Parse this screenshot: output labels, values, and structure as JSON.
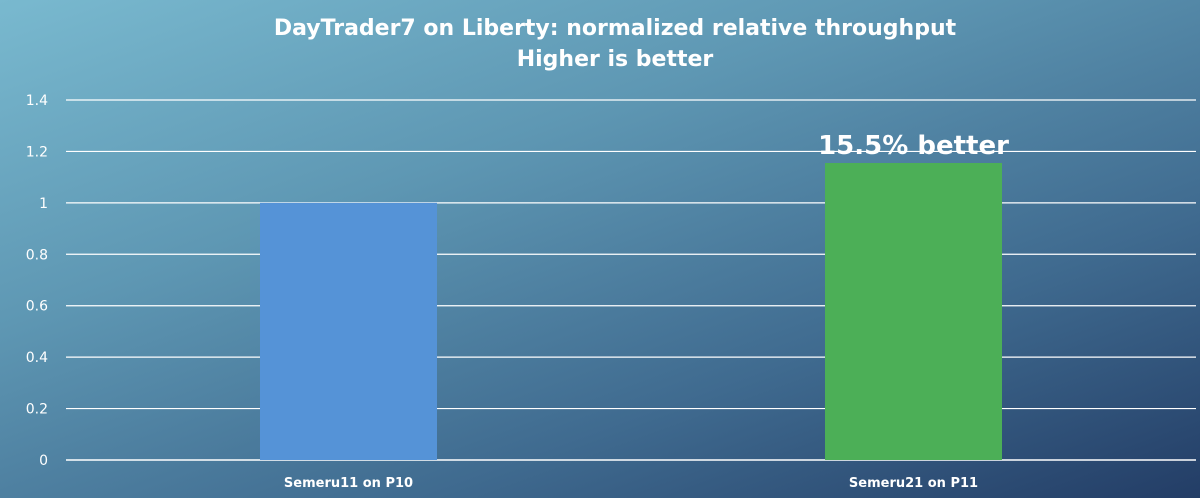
{
  "chart_data": {
    "type": "bar",
    "title": "DayTrader7 on Liberty: normalized relative throughput",
    "subtitle": "Higher is better",
    "xlabel": "",
    "ylabel": "",
    "categories": [
      "Semeru11 on P10",
      "Semeru21 on P11"
    ],
    "values": [
      1.0,
      1.155
    ],
    "colors": [
      "#5593d7",
      "#4caf57"
    ],
    "ylim": [
      0,
      1.4
    ],
    "yticks": [
      0,
      0.2,
      0.4,
      0.6,
      0.8,
      1,
      1.2,
      1.4
    ],
    "ytick_labels": [
      "0",
      "0.2",
      "0.4",
      "0.6",
      "0.8",
      "1",
      "1.2",
      "1.4"
    ],
    "grid": true,
    "annotation": {
      "text": "15.5% better",
      "category_index": 1
    }
  }
}
